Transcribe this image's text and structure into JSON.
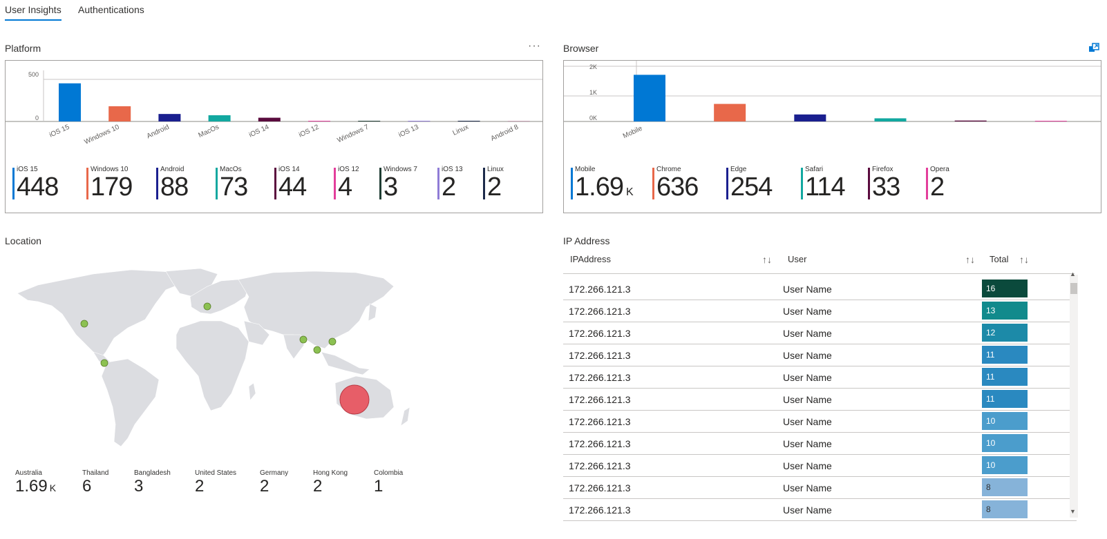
{
  "tabs": [
    {
      "label": "User Insights",
      "active": true
    },
    {
      "label": "Authentications",
      "active": false
    }
  ],
  "platform": {
    "title": "Platform",
    "more_icon": "ellipsis-icon",
    "chart_data": {
      "type": "bar",
      "categories": [
        "iOS 15",
        "Windows 10",
        "Android",
        "MacOs",
        "iOS 14",
        "iOS 12",
        "Windows 7",
        "iOS 13",
        "Linux",
        "Android 8"
      ],
      "values": [
        448,
        179,
        88,
        73,
        44,
        4,
        3,
        2,
        2,
        1
      ],
      "colors": [
        "#0078d4",
        "#e8684a",
        "#1a1f8f",
        "#12a8a0",
        "#5a0b3e",
        "#e33e9b",
        "#1f3d33",
        "#8f7cd6",
        "#1c2a4a",
        "#c9a3b6"
      ],
      "ylim": [
        0,
        600
      ],
      "yticks": [
        "500",
        "0"
      ],
      "grid": true
    },
    "stats": [
      {
        "label": "iOS 15",
        "value": "448",
        "color": "#0078d4"
      },
      {
        "label": "Windows 10",
        "value": "179",
        "color": "#e8684a"
      },
      {
        "label": "Android",
        "value": "88",
        "color": "#1a1f8f"
      },
      {
        "label": "MacOs",
        "value": "73",
        "color": "#12a8a0"
      },
      {
        "label": "iOS 14",
        "value": "44",
        "color": "#5a0b3e"
      },
      {
        "label": "iOS 12",
        "value": "4",
        "color": "#e33e9b"
      },
      {
        "label": "Windows 7",
        "value": "3",
        "color": "#1f3d33"
      },
      {
        "label": "iOS 13",
        "value": "2",
        "color": "#8f7cd6"
      },
      {
        "label": "Linux",
        "value": "2",
        "color": "#1c2a4a"
      }
    ]
  },
  "browser": {
    "title": "Browser",
    "action_icon": "focus-mode-icon",
    "chart_data": {
      "type": "bar",
      "categories": [
        "Mobile",
        "Chrome",
        "Edge",
        "Safari",
        "Firefox",
        "Opera"
      ],
      "values": [
        1690,
        636,
        254,
        114,
        33,
        2
      ],
      "colors": [
        "#0078d4",
        "#e8684a",
        "#1a1f8f",
        "#12a8a0",
        "#5a0b3e",
        "#e33e9b"
      ],
      "ylim": [
        0,
        2000
      ],
      "yticks": [
        "2K",
        "1K",
        "0K"
      ],
      "xlabels_visible": [
        "Mobile"
      ],
      "grid": true
    },
    "stats": [
      {
        "label": "Mobile",
        "value": "1.69",
        "suffix": "K",
        "color": "#0078d4"
      },
      {
        "label": "Chrome",
        "value": "636",
        "color": "#e8684a"
      },
      {
        "label": "Edge",
        "value": "254",
        "color": "#1a1f8f"
      },
      {
        "label": "Safari",
        "value": "114",
        "color": "#12a8a0"
      },
      {
        "label": "Firefox",
        "value": "33",
        "color": "#5a0b3e"
      },
      {
        "label": "Opera",
        "value": "2",
        "color": "#e33e9b"
      }
    ]
  },
  "location": {
    "title": "Location",
    "stats": [
      {
        "label": "Australia",
        "value": "1.69",
        "suffix": "K"
      },
      {
        "label": "Thailand",
        "value": "6"
      },
      {
        "label": "Bangladesh",
        "value": "3"
      },
      {
        "label": "United States",
        "value": "2"
      },
      {
        "label": "Germany",
        "value": "2"
      },
      {
        "label": "Hong Kong",
        "value": "2"
      },
      {
        "label": "Colombia",
        "value": "1"
      }
    ],
    "marker_color": "#8cc152",
    "highlight_color": "#e8505b"
  },
  "ip": {
    "title": "IP Address",
    "columns": [
      "IPAddress",
      "User",
      "Total"
    ],
    "sort_icon": "sort-arrows-icon",
    "rows": [
      {
        "ip": "172.266.121.3",
        "user": "User Name",
        "total": "16",
        "color": "#0b4a3c",
        "text": "#ffffff"
      },
      {
        "ip": "172.266.121.3",
        "user": "User Name",
        "total": "13",
        "color": "#118a8c",
        "text": "#ffffff"
      },
      {
        "ip": "172.266.121.3",
        "user": "User Name",
        "total": "12",
        "color": "#1c8aa8",
        "text": "#ffffff"
      },
      {
        "ip": "172.266.121.3",
        "user": "User Name",
        "total": "11",
        "color": "#2a89c0",
        "text": "#ffffff"
      },
      {
        "ip": "172.266.121.3",
        "user": "User Name",
        "total": "11",
        "color": "#2a89c0",
        "text": "#ffffff"
      },
      {
        "ip": "172.266.121.3",
        "user": "User Name",
        "total": "11",
        "color": "#2a89c0",
        "text": "#ffffff"
      },
      {
        "ip": "172.266.121.3",
        "user": "User Name",
        "total": "10",
        "color": "#4b9dcc",
        "text": "#ffffff"
      },
      {
        "ip": "172.266.121.3",
        "user": "User Name",
        "total": "10",
        "color": "#4b9dcc",
        "text": "#ffffff"
      },
      {
        "ip": "172.266.121.3",
        "user": "User Name",
        "total": "10",
        "color": "#4b9dcc",
        "text": "#ffffff"
      },
      {
        "ip": "172.266.121.3",
        "user": "User Name",
        "total": "8",
        "color": "#86b3d9",
        "text": "#323130"
      },
      {
        "ip": "172.266.121.3",
        "user": "User Name",
        "total": "8",
        "color": "#86b3d9",
        "text": "#323130"
      }
    ]
  }
}
